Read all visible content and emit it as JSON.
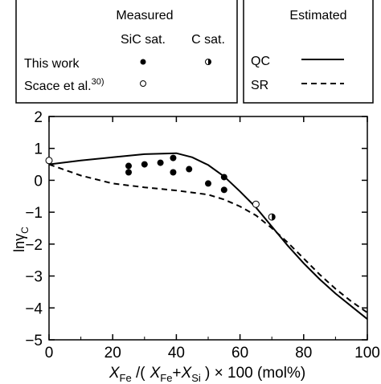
{
  "legend": {
    "measured_title": "Measured",
    "estimated_title": "Estimated",
    "col_sic": "SiC sat.",
    "col_c": "C sat.",
    "row_this_work": "This work",
    "row_scace": "Scace et al.",
    "row_scace_ref": "30)",
    "qc": "QC",
    "sr": "SR"
  },
  "chart_data": {
    "type": "scatter",
    "ylabel_main": "ln",
    "ylabel_gamma": "γ",
    "ylabel_sub": "C",
    "xlabel": {
      "x1": "X",
      "x1_sub": "Fe",
      "slash": " /(",
      "x2": "X",
      "x2_sub": "Fe",
      "plus": "+",
      "x3": "X",
      "x3_sub": "Si",
      "tail": " )  × 100 (mol%)"
    },
    "xlim": [
      0,
      100
    ],
    "ylim": [
      -5,
      2
    ],
    "xticks": [
      0,
      20,
      40,
      60,
      80,
      100
    ],
    "yticks": [
      2,
      1,
      0,
      -1,
      -2,
      -3,
      -4,
      -5
    ],
    "grid": false,
    "series": [
      {
        "name": "This work",
        "marker": "filled-circle",
        "points": [
          [
            25,
            0.45
          ],
          [
            25,
            0.25
          ],
          [
            30,
            0.5
          ],
          [
            35,
            0.55
          ],
          [
            39,
            0.7
          ],
          [
            39,
            0.25
          ],
          [
            44,
            0.35
          ],
          [
            50,
            -0.1
          ],
          [
            55,
            0.1
          ],
          [
            55,
            -0.3
          ]
        ]
      },
      {
        "name": "C sat.",
        "marker": "half-filled-circle",
        "points": [
          [
            70,
            -1.15
          ]
        ]
      },
      {
        "name": "Scace et al.",
        "marker": "open-circle",
        "points": [
          [
            0,
            0.62
          ],
          [
            65,
            -0.75
          ]
        ]
      },
      {
        "name": "QC",
        "style": "solid",
        "points": [
          [
            0,
            0.5
          ],
          [
            10,
            0.62
          ],
          [
            20,
            0.72
          ],
          [
            30,
            0.82
          ],
          [
            40,
            0.85
          ],
          [
            45,
            0.72
          ],
          [
            50,
            0.48
          ],
          [
            55,
            0.12
          ],
          [
            60,
            -0.35
          ],
          [
            65,
            -0.85
          ],
          [
            70,
            -1.45
          ],
          [
            75,
            -2.05
          ],
          [
            80,
            -2.6
          ],
          [
            85,
            -3.1
          ],
          [
            90,
            -3.55
          ],
          [
            95,
            -3.95
          ],
          [
            100,
            -4.35
          ]
        ]
      },
      {
        "name": "SR",
        "style": "dashed",
        "points": [
          [
            0,
            0.5
          ],
          [
            10,
            0.15
          ],
          [
            20,
            -0.1
          ],
          [
            30,
            -0.22
          ],
          [
            40,
            -0.32
          ],
          [
            50,
            -0.45
          ],
          [
            55,
            -0.6
          ],
          [
            60,
            -0.82
          ],
          [
            65,
            -1.1
          ],
          [
            70,
            -1.5
          ],
          [
            75,
            -1.95
          ],
          [
            80,
            -2.45
          ],
          [
            85,
            -2.95
          ],
          [
            90,
            -3.4
          ],
          [
            95,
            -3.8
          ],
          [
            100,
            -4.15
          ]
        ]
      }
    ]
  }
}
